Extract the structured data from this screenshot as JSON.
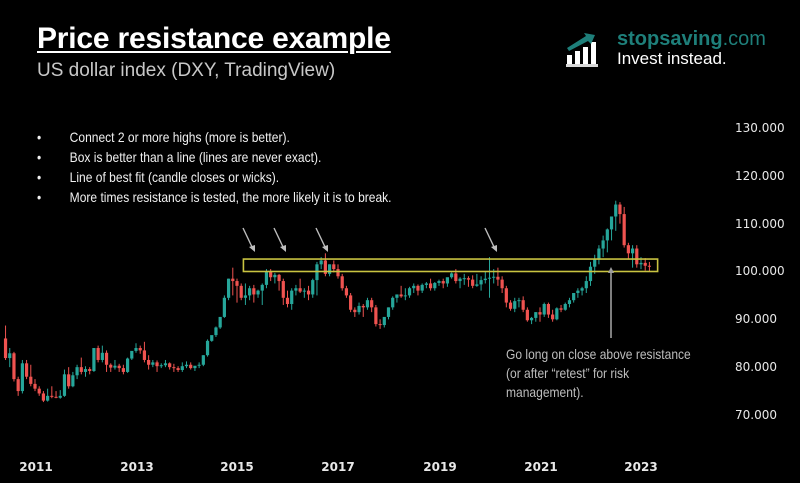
{
  "header": {
    "title": "Price resistance example",
    "subtitle": "US dollar index (DXY, TradingView)"
  },
  "brand": {
    "site_name": "stopsaving",
    "site_tld": ".com",
    "tagline": "Invest instead.",
    "icon": "bar-chart-arrow-icon",
    "color": "#1e7f7a"
  },
  "bullets": [
    "Connect 2 or more highs (more is better).",
    "Box is better than a line (lines are never exact).",
    "Line of best fit (candle closes or wicks).",
    "More times resistance is tested, the more likely it is to break."
  ],
  "annotation": {
    "text": "Go long on close above resistance\n(or after “retest” for risk\nmanagement)."
  },
  "colors": {
    "up": "#26a69a",
    "down": "#ef5350",
    "box": "#c8c341",
    "arrow": "#bdbdbd",
    "background": "#000000"
  },
  "chart_data": {
    "type": "candlestick",
    "title": "Price resistance example",
    "subtitle": "US dollar index (DXY, TradingView)",
    "xlabel": "",
    "ylabel": "",
    "x_ticks": [
      "2011",
      "2013",
      "2015",
      "2017",
      "2019",
      "2021",
      "2023"
    ],
    "y_ticks": [
      "130.000",
      "120.000",
      "110.000",
      "100.000",
      "90.000",
      "80.000",
      "70.000"
    ],
    "ylim": [
      67,
      131
    ],
    "grid": false,
    "interval": "monthly",
    "resistance_zone": {
      "low": 100.0,
      "high": 102.6,
      "start": "2015-03",
      "end": "2023-04"
    },
    "arrows_at": [
      "2015-03",
      "2015-11",
      "2016-12",
      "2020-03"
    ],
    "breakout_marker": "2022-05",
    "candles": [
      {
        "t": "2010-06",
        "o": 86.0,
        "h": 88.7,
        "c": 81.9,
        "l": 81.5
      },
      {
        "t": "2010-07",
        "o": 81.9,
        "h": 84.0,
        "c": 82.9,
        "l": 80.0
      },
      {
        "t": "2010-08",
        "o": 82.9,
        "h": 83.2,
        "c": 77.5,
        "l": 77.0
      },
      {
        "t": "2010-09",
        "o": 77.5,
        "h": 78.0,
        "c": 75.0,
        "l": 74.0
      },
      {
        "t": "2010-10",
        "o": 75.0,
        "h": 81.5,
        "c": 80.8,
        "l": 74.5
      },
      {
        "t": "2010-11",
        "o": 80.8,
        "h": 81.5,
        "c": 78.0,
        "l": 77.5
      },
      {
        "t": "2010-12",
        "o": 78.0,
        "h": 80.5,
        "c": 76.5,
        "l": 76.0
      },
      {
        "t": "2011-01",
        "o": 76.5,
        "h": 77.5,
        "c": 75.5,
        "l": 75.0
      },
      {
        "t": "2011-02",
        "o": 75.5,
        "h": 76.0,
        "c": 74.5,
        "l": 74.0
      },
      {
        "t": "2011-03",
        "o": 74.5,
        "h": 75.0,
        "c": 73.0,
        "l": 72.7
      },
      {
        "t": "2011-04",
        "o": 73.0,
        "h": 75.5,
        "c": 74.0,
        "l": 72.8
      },
      {
        "t": "2011-05",
        "o": 74.0,
        "h": 76.0,
        "c": 73.8,
        "l": 73.5
      },
      {
        "t": "2011-06",
        "o": 73.8,
        "h": 75.0,
        "c": 73.6,
        "l": 73.5
      },
      {
        "t": "2011-07",
        "o": 73.6,
        "h": 75.2,
        "c": 74.0,
        "l": 73.4
      },
      {
        "t": "2011-08",
        "o": 74.0,
        "h": 79.5,
        "c": 78.5,
        "l": 73.8
      },
      {
        "t": "2011-09",
        "o": 78.5,
        "h": 80.0,
        "c": 76.0,
        "l": 75.5
      },
      {
        "t": "2011-10",
        "o": 76.0,
        "h": 79.0,
        "c": 78.3,
        "l": 75.8
      },
      {
        "t": "2011-11",
        "o": 78.3,
        "h": 80.5,
        "c": 80.0,
        "l": 77.5
      },
      {
        "t": "2011-12",
        "o": 80.0,
        "h": 82.0,
        "c": 79.0,
        "l": 78.5
      },
      {
        "t": "2012-01",
        "o": 79.0,
        "h": 80.2,
        "c": 79.6,
        "l": 78.0
      },
      {
        "t": "2012-02",
        "o": 79.6,
        "h": 80.0,
        "c": 79.2,
        "l": 78.5
      },
      {
        "t": "2012-03",
        "o": 79.2,
        "h": 81.5,
        "c": 84.0,
        "l": 79.0
      },
      {
        "t": "2012-04",
        "o": 84.0,
        "h": 84.5,
        "c": 81.5,
        "l": 81.0
      },
      {
        "t": "2012-05",
        "o": 81.5,
        "h": 84.5,
        "c": 83.0,
        "l": 81.0
      },
      {
        "t": "2012-06",
        "o": 83.0,
        "h": 83.5,
        "c": 80.5,
        "l": 79.0
      },
      {
        "t": "2012-07",
        "o": 80.5,
        "h": 80.8,
        "c": 79.9,
        "l": 79.0
      },
      {
        "t": "2012-08",
        "o": 79.9,
        "h": 81.5,
        "c": 80.3,
        "l": 79.5
      },
      {
        "t": "2012-09",
        "o": 80.3,
        "h": 80.7,
        "c": 79.8,
        "l": 79.0
      },
      {
        "t": "2012-10",
        "o": 79.8,
        "h": 80.5,
        "c": 79.0,
        "l": 78.5
      },
      {
        "t": "2012-11",
        "o": 79.0,
        "h": 82.0,
        "c": 81.8,
        "l": 78.8
      },
      {
        "t": "2012-12",
        "o": 81.8,
        "h": 83.0,
        "c": 83.4,
        "l": 81.5
      },
      {
        "t": "2013-01",
        "o": 83.4,
        "h": 85.0,
        "c": 84.0,
        "l": 83.0
      },
      {
        "t": "2013-02",
        "o": 84.0,
        "h": 84.5,
        "c": 83.5,
        "l": 82.8
      },
      {
        "t": "2013-03",
        "o": 83.5,
        "h": 85.3,
        "c": 81.5,
        "l": 81.0
      },
      {
        "t": "2013-04",
        "o": 81.5,
        "h": 82.5,
        "c": 80.5,
        "l": 79.5
      },
      {
        "t": "2013-05",
        "o": 80.5,
        "h": 81.5,
        "c": 81.0,
        "l": 80.0
      },
      {
        "t": "2013-06",
        "o": 81.0,
        "h": 81.4,
        "c": 80.2,
        "l": 79.0
      },
      {
        "t": "2013-07",
        "o": 80.2,
        "h": 80.8,
        "c": 80.4,
        "l": 79.8
      },
      {
        "t": "2013-08",
        "o": 80.4,
        "h": 81.5,
        "c": 80.8,
        "l": 80.0
      },
      {
        "t": "2013-09",
        "o": 80.8,
        "h": 81.0,
        "c": 80.0,
        "l": 79.5
      },
      {
        "t": "2013-10",
        "o": 80.0,
        "h": 80.7,
        "c": 79.8,
        "l": 79.0
      },
      {
        "t": "2013-11",
        "o": 79.8,
        "h": 80.2,
        "c": 79.4,
        "l": 79.0
      },
      {
        "t": "2013-12",
        "o": 79.4,
        "h": 81.0,
        "c": 80.2,
        "l": 79.0
      },
      {
        "t": "2014-01",
        "o": 80.2,
        "h": 81.2,
        "c": 80.5,
        "l": 79.8
      },
      {
        "t": "2014-02",
        "o": 80.5,
        "h": 81.0,
        "c": 79.8,
        "l": 79.5
      },
      {
        "t": "2014-03",
        "o": 79.8,
        "h": 80.2,
        "c": 80.3,
        "l": 79.2
      },
      {
        "t": "2014-04",
        "o": 80.3,
        "h": 81.0,
        "c": 80.5,
        "l": 79.8
      },
      {
        "t": "2014-05",
        "o": 80.5,
        "h": 82.5,
        "c": 82.5,
        "l": 80.2
      },
      {
        "t": "2014-06",
        "o": 82.5,
        "h": 85.8,
        "c": 85.5,
        "l": 82.2
      },
      {
        "t": "2014-07",
        "o": 85.5,
        "h": 86.5,
        "c": 86.7,
        "l": 85.3
      },
      {
        "t": "2014-08",
        "o": 86.7,
        "h": 88.5,
        "c": 88.3,
        "l": 86.3
      },
      {
        "t": "2014-09",
        "o": 88.3,
        "h": 90.5,
        "c": 90.5,
        "l": 88.0
      },
      {
        "t": "2014-10",
        "o": 90.5,
        "h": 95.0,
        "c": 94.5,
        "l": 90.3
      },
      {
        "t": "2014-11",
        "o": 94.5,
        "h": 98.5,
        "c": 98.5,
        "l": 94.0
      },
      {
        "t": "2014-12",
        "o": 98.5,
        "h": 100.8,
        "c": 98.0,
        "l": 95.0
      },
      {
        "t": "2015-01",
        "o": 98.0,
        "h": 98.5,
        "c": 97.0,
        "l": 93.5
      },
      {
        "t": "2015-02",
        "o": 97.0,
        "h": 97.5,
        "c": 94.5,
        "l": 94.0
      },
      {
        "t": "2015-03",
        "o": 94.5,
        "h": 97.5,
        "c": 95.0,
        "l": 93.0
      },
      {
        "t": "2015-04",
        "o": 95.0,
        "h": 97.0,
        "c": 96.5,
        "l": 94.0
      },
      {
        "t": "2015-05",
        "o": 96.5,
        "h": 97.2,
        "c": 95.2,
        "l": 93.5
      },
      {
        "t": "2015-06",
        "o": 95.2,
        "h": 96.2,
        "c": 96.0,
        "l": 94.5
      },
      {
        "t": "2015-07",
        "o": 96.0,
        "h": 97.5,
        "c": 97.2,
        "l": 93.0
      },
      {
        "t": "2015-08",
        "o": 97.2,
        "h": 100.5,
        "c": 100.0,
        "l": 96.5
      },
      {
        "t": "2015-09",
        "o": 100.0,
        "h": 100.5,
        "c": 98.8,
        "l": 98.0
      },
      {
        "t": "2015-10",
        "o": 98.8,
        "h": 99.7,
        "c": 99.3,
        "l": 97.5
      },
      {
        "t": "2015-11",
        "o": 99.3,
        "h": 99.5,
        "c": 98.0,
        "l": 96.0
      },
      {
        "t": "2015-12",
        "o": 98.0,
        "h": 98.5,
        "c": 94.5,
        "l": 93.0
      },
      {
        "t": "2016-01",
        "o": 94.5,
        "h": 96.0,
        "c": 93.2,
        "l": 92.5
      },
      {
        "t": "2016-02",
        "o": 93.2,
        "h": 96.5,
        "c": 96.0,
        "l": 92.0
      },
      {
        "t": "2016-03",
        "o": 96.0,
        "h": 97.2,
        "c": 96.5,
        "l": 95.0
      },
      {
        "t": "2016-04",
        "o": 96.5,
        "h": 98.5,
        "c": 95.8,
        "l": 95.5
      },
      {
        "t": "2016-05",
        "o": 95.8,
        "h": 96.5,
        "c": 96.0,
        "l": 94.5
      },
      {
        "t": "2016-06",
        "o": 96.0,
        "h": 97.0,
        "c": 95.2,
        "l": 94.0
      },
      {
        "t": "2016-07",
        "o": 95.2,
        "h": 98.5,
        "c": 98.2,
        "l": 94.5
      },
      {
        "t": "2016-08",
        "o": 98.2,
        "h": 102.0,
        "c": 101.5,
        "l": 95.0
      },
      {
        "t": "2016-09",
        "o": 101.5,
        "h": 103.0,
        "c": 102.3,
        "l": 100.5
      },
      {
        "t": "2016-10",
        "o": 102.3,
        "h": 103.8,
        "c": 99.5,
        "l": 99.0
      },
      {
        "t": "2016-11",
        "o": 99.5,
        "h": 101.5,
        "c": 101.5,
        "l": 99.0
      },
      {
        "t": "2016-12",
        "o": 101.5,
        "h": 102.3,
        "c": 100.5,
        "l": 99.8
      },
      {
        "t": "2017-01",
        "o": 100.5,
        "h": 101.5,
        "c": 99.0,
        "l": 98.5
      },
      {
        "t": "2017-02",
        "o": 99.0,
        "h": 99.5,
        "c": 96.5,
        "l": 96.0
      },
      {
        "t": "2017-03",
        "o": 96.5,
        "h": 97.0,
        "c": 95.0,
        "l": 94.5
      },
      {
        "t": "2017-04",
        "o": 95.0,
        "h": 95.5,
        "c": 92.0,
        "l": 91.5
      },
      {
        "t": "2017-05",
        "o": 92.0,
        "h": 92.5,
        "c": 91.5,
        "l": 90.5
      },
      {
        "t": "2017-06",
        "o": 91.5,
        "h": 93.5,
        "c": 92.8,
        "l": 91.0
      },
      {
        "t": "2017-07",
        "o": 92.8,
        "h": 93.2,
        "c": 92.5,
        "l": 90.5
      },
      {
        "t": "2017-08",
        "o": 92.5,
        "h": 94.5,
        "c": 94.0,
        "l": 92.0
      },
      {
        "t": "2017-09",
        "o": 94.0,
        "h": 94.5,
        "c": 92.5,
        "l": 91.5
      },
      {
        "t": "2017-10",
        "o": 92.5,
        "h": 93.0,
        "c": 89.0,
        "l": 88.5
      },
      {
        "t": "2017-11",
        "o": 89.0,
        "h": 90.0,
        "c": 88.8,
        "l": 88.0
      },
      {
        "t": "2017-12",
        "o": 88.8,
        "h": 89.5,
        "c": 90.5,
        "l": 88.3
      },
      {
        "t": "2018-01",
        "o": 90.5,
        "h": 92.5,
        "c": 92.5,
        "l": 90.0
      },
      {
        "t": "2018-02",
        "o": 92.5,
        "h": 94.8,
        "c": 94.5,
        "l": 92.0
      },
      {
        "t": "2018-03",
        "o": 94.5,
        "h": 95.2,
        "c": 95.2,
        "l": 93.5
      },
      {
        "t": "2018-04",
        "o": 95.2,
        "h": 97.0,
        "c": 94.8,
        "l": 94.5
      },
      {
        "t": "2018-05",
        "o": 94.8,
        "h": 96.5,
        "c": 95.0,
        "l": 94.0
      },
      {
        "t": "2018-06",
        "o": 95.0,
        "h": 96.8,
        "c": 96.5,
        "l": 94.5
      },
      {
        "t": "2018-07",
        "o": 96.5,
        "h": 97.5,
        "c": 97.0,
        "l": 95.5
      },
      {
        "t": "2018-08",
        "o": 97.0,
        "h": 97.3,
        "c": 96.0,
        "l": 95.0
      },
      {
        "t": "2018-09",
        "o": 96.0,
        "h": 97.5,
        "c": 97.2,
        "l": 95.5
      },
      {
        "t": "2018-10",
        "o": 97.2,
        "h": 97.8,
        "c": 97.5,
        "l": 96.5
      },
      {
        "t": "2018-11",
        "o": 97.5,
        "h": 98.5,
        "c": 96.5,
        "l": 96.0
      },
      {
        "t": "2018-12",
        "o": 96.5,
        "h": 97.8,
        "c": 97.6,
        "l": 96.0
      },
      {
        "t": "2019-01",
        "o": 97.6,
        "h": 98.3,
        "c": 98.0,
        "l": 97.0
      },
      {
        "t": "2019-02",
        "o": 98.0,
        "h": 98.5,
        "c": 97.5,
        "l": 96.5
      },
      {
        "t": "2019-03",
        "o": 97.5,
        "h": 98.0,
        "c": 98.8,
        "l": 96.8
      },
      {
        "t": "2019-04",
        "o": 98.8,
        "h": 99.8,
        "c": 99.6,
        "l": 98.5
      },
      {
        "t": "2019-05",
        "o": 99.6,
        "h": 100.5,
        "c": 98.0,
        "l": 97.5
      },
      {
        "t": "2019-06",
        "o": 98.0,
        "h": 98.8,
        "c": 98.5,
        "l": 96.5
      },
      {
        "t": "2019-07",
        "o": 98.5,
        "h": 99.5,
        "c": 98.6,
        "l": 97.2
      },
      {
        "t": "2019-08",
        "o": 98.6,
        "h": 99.0,
        "c": 98.3,
        "l": 96.8
      },
      {
        "t": "2019-09",
        "o": 98.3,
        "h": 99.2,
        "c": 97.0,
        "l": 96.5
      },
      {
        "t": "2019-10",
        "o": 97.0,
        "h": 99.5,
        "c": 97.3,
        "l": 96.8
      },
      {
        "t": "2019-11",
        "o": 97.3,
        "h": 99.0,
        "c": 98.2,
        "l": 96.0
      },
      {
        "t": "2019-12",
        "o": 98.2,
        "h": 100.0,
        "c": 98.5,
        "l": 97.5
      },
      {
        "t": "2020-01",
        "o": 98.5,
        "h": 103.0,
        "c": 98.7,
        "l": 94.5
      },
      {
        "t": "2020-02",
        "o": 98.7,
        "h": 100.5,
        "c": 98.9,
        "l": 97.5
      },
      {
        "t": "2020-03",
        "o": 98.9,
        "h": 100.8,
        "c": 98.3,
        "l": 97.0
      },
      {
        "t": "2020-04",
        "o": 98.3,
        "h": 99.0,
        "c": 96.5,
        "l": 95.5
      },
      {
        "t": "2020-05",
        "o": 96.5,
        "h": 97.0,
        "c": 93.5,
        "l": 92.5
      },
      {
        "t": "2020-06",
        "o": 93.5,
        "h": 94.0,
        "c": 92.2,
        "l": 91.8
      },
      {
        "t": "2020-07",
        "o": 92.2,
        "h": 94.5,
        "c": 93.8,
        "l": 91.5
      },
      {
        "t": "2020-08",
        "o": 93.8,
        "h": 94.5,
        "c": 94.0,
        "l": 92.5
      },
      {
        "t": "2020-09",
        "o": 94.0,
        "h": 94.8,
        "c": 92.0,
        "l": 91.5
      },
      {
        "t": "2020-10",
        "o": 92.0,
        "h": 92.5,
        "c": 89.8,
        "l": 89.5
      },
      {
        "t": "2020-11",
        "o": 89.8,
        "h": 90.5,
        "c": 90.3,
        "l": 89.0
      },
      {
        "t": "2020-12",
        "o": 90.3,
        "h": 91.5,
        "c": 91.5,
        "l": 89.5
      },
      {
        "t": "2021-01",
        "o": 91.5,
        "h": 92.5,
        "c": 91.0,
        "l": 89.5
      },
      {
        "t": "2021-02",
        "o": 91.0,
        "h": 93.5,
        "c": 93.2,
        "l": 90.5
      },
      {
        "t": "2021-03",
        "o": 93.2,
        "h": 93.5,
        "c": 91.0,
        "l": 90.3
      },
      {
        "t": "2021-04",
        "o": 91.0,
        "h": 92.0,
        "c": 90.0,
        "l": 89.5
      },
      {
        "t": "2021-05",
        "o": 90.0,
        "h": 92.5,
        "c": 92.3,
        "l": 89.8
      },
      {
        "t": "2021-06",
        "o": 92.3,
        "h": 93.0,
        "c": 92.0,
        "l": 91.5
      },
      {
        "t": "2021-07",
        "o": 92.0,
        "h": 93.5,
        "c": 93.2,
        "l": 91.8
      },
      {
        "t": "2021-08",
        "o": 93.2,
        "h": 94.5,
        "c": 94.0,
        "l": 92.5
      },
      {
        "t": "2021-09",
        "o": 94.0,
        "h": 95.5,
        "c": 95.5,
        "l": 93.5
      },
      {
        "t": "2021-10",
        "o": 95.5,
        "h": 96.5,
        "c": 96.0,
        "l": 94.5
      },
      {
        "t": "2021-11",
        "o": 96.0,
        "h": 96.8,
        "c": 96.5,
        "l": 95.0
      },
      {
        "t": "2021-12",
        "o": 96.5,
        "h": 99.0,
        "c": 98.0,
        "l": 95.5
      },
      {
        "t": "2022-01",
        "o": 98.0,
        "h": 102.0,
        "c": 101.0,
        "l": 97.0
      },
      {
        "t": "2022-02",
        "o": 101.0,
        "h": 103.5,
        "c": 102.5,
        "l": 99.5
      },
      {
        "t": "2022-03",
        "o": 102.5,
        "h": 105.5,
        "c": 104.8,
        "l": 101.5
      },
      {
        "t": "2022-04",
        "o": 104.8,
        "h": 107.5,
        "c": 106.5,
        "l": 103.0
      },
      {
        "t": "2022-05",
        "o": 106.5,
        "h": 109.0,
        "c": 108.8,
        "l": 104.0
      },
      {
        "t": "2022-06",
        "o": 108.8,
        "h": 110.5,
        "c": 111.5,
        "l": 106.5
      },
      {
        "t": "2022-07",
        "o": 111.5,
        "h": 114.8,
        "c": 114.0,
        "l": 108.5
      },
      {
        "t": "2022-08",
        "o": 114.0,
        "h": 114.5,
        "c": 112.0,
        "l": 110.0
      },
      {
        "t": "2022-09",
        "o": 112.0,
        "h": 113.5,
        "c": 105.5,
        "l": 105.0
      },
      {
        "t": "2022-10",
        "o": 105.5,
        "h": 106.0,
        "c": 103.8,
        "l": 102.5
      },
      {
        "t": "2022-11",
        "o": 103.8,
        "h": 105.5,
        "c": 104.8,
        "l": 100.8
      },
      {
        "t": "2022-12",
        "o": 104.8,
        "h": 105.5,
        "c": 101.5,
        "l": 100.8
      },
      {
        "t": "2023-01",
        "o": 101.5,
        "h": 103.0,
        "c": 101.8,
        "l": 100.5
      },
      {
        "t": "2023-02",
        "o": 101.8,
        "h": 102.8,
        "c": 101.2,
        "l": 100.2
      },
      {
        "t": "2023-03",
        "o": 101.2,
        "h": 102.0,
        "c": 101.0,
        "l": 100.0
      }
    ]
  }
}
